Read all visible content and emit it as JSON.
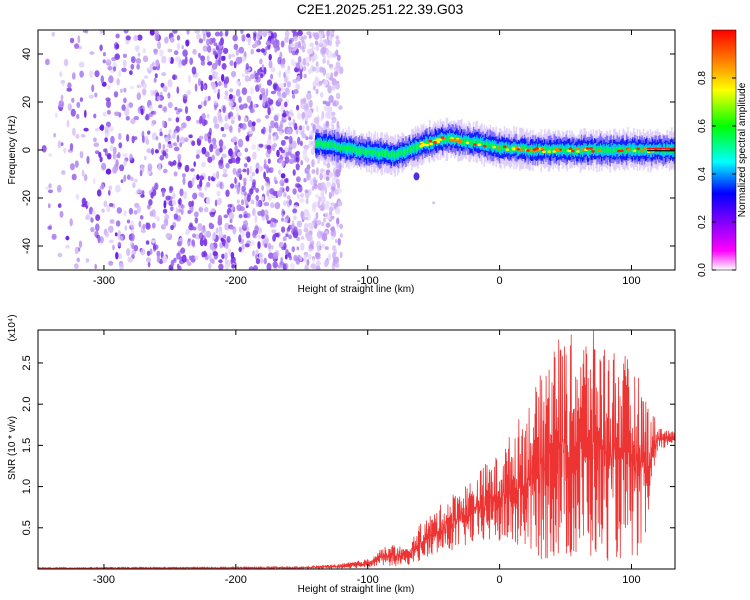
{
  "chart_data": [
    {
      "type": "heatmap",
      "title": "C2E1.2025.251.22.39.G03",
      "xlabel": "Height of straight line (km)",
      "ylabel": "Frequency (Hz)",
      "xlim": [
        -350,
        133
      ],
      "ylim": [
        -50,
        50
      ],
      "xticks": [
        -300,
        -200,
        -100,
        0,
        100
      ],
      "yticks": [
        -40,
        -20,
        0,
        20,
        40
      ],
      "noise_region_x": [
        -350,
        -120
      ],
      "signal_region_x": [
        -140,
        133
      ],
      "signal_track": {
        "x": [
          -140,
          -120,
          -100,
          -80,
          -60,
          -40,
          -20,
          0,
          20,
          40,
          60,
          80,
          100,
          120,
          133
        ],
        "freq": [
          3,
          1,
          -1,
          -2,
          2,
          5,
          3,
          1,
          0,
          0,
          0,
          0,
          0,
          0,
          0
        ]
      },
      "stray_blobs": [
        {
          "x": -63,
          "freq": -11
        },
        {
          "x": -50,
          "freq": -22
        }
      ],
      "colorbar": {
        "label": "Normalized spectral amplitude",
        "range": [
          0,
          1
        ],
        "ticks": [
          "0.0",
          "0.2",
          "0.4",
          "0.6",
          "0.8"
        ],
        "colors": [
          "#ffffff",
          "#ff00ff",
          "#8000ff",
          "#0000ff",
          "#00ffff",
          "#00ff00",
          "#ffff00",
          "#ff8000",
          "#ff0000"
        ]
      }
    },
    {
      "type": "line",
      "title": "",
      "xlabel": "Height of straight line (km)",
      "ylabel": "SNR (10 * v/v)",
      "y_multiplier": "(x10⁴)",
      "xlim": [
        -350,
        133
      ],
      "ylim": [
        0,
        2.9
      ],
      "xticks": [
        -300,
        -200,
        -100,
        0,
        100
      ],
      "yticks": [
        "0.5",
        "1.0",
        "1.5",
        "2.0",
        "2.5"
      ],
      "color": "#ee3333",
      "envelope": {
        "x": [
          -350,
          -150,
          -120,
          -100,
          -90,
          -80,
          -70,
          -60,
          -50,
          -40,
          -30,
          -20,
          -10,
          0,
          10,
          20,
          30,
          40,
          50,
          60,
          70,
          80,
          90,
          100,
          110,
          120,
          133
        ],
        "min": [
          0,
          0,
          0.01,
          0.02,
          0.04,
          0.03,
          0.05,
          0.1,
          0.15,
          0.2,
          0.25,
          0.3,
          0.32,
          0.3,
          0.25,
          0.2,
          0.1,
          0.1,
          0.1,
          0.05,
          0.1,
          0.1,
          0.1,
          0.1,
          0.2,
          1.4,
          1.55
        ],
        "max": [
          0.02,
          0.03,
          0.06,
          0.12,
          0.25,
          0.3,
          0.25,
          0.55,
          0.7,
          0.85,
          1.0,
          1.1,
          1.3,
          1.4,
          1.7,
          2.0,
          2.3,
          2.9,
          2.8,
          2.9,
          2.9,
          2.8,
          2.7,
          2.5,
          2.2,
          1.75,
          1.65
        ]
      }
    }
  ]
}
